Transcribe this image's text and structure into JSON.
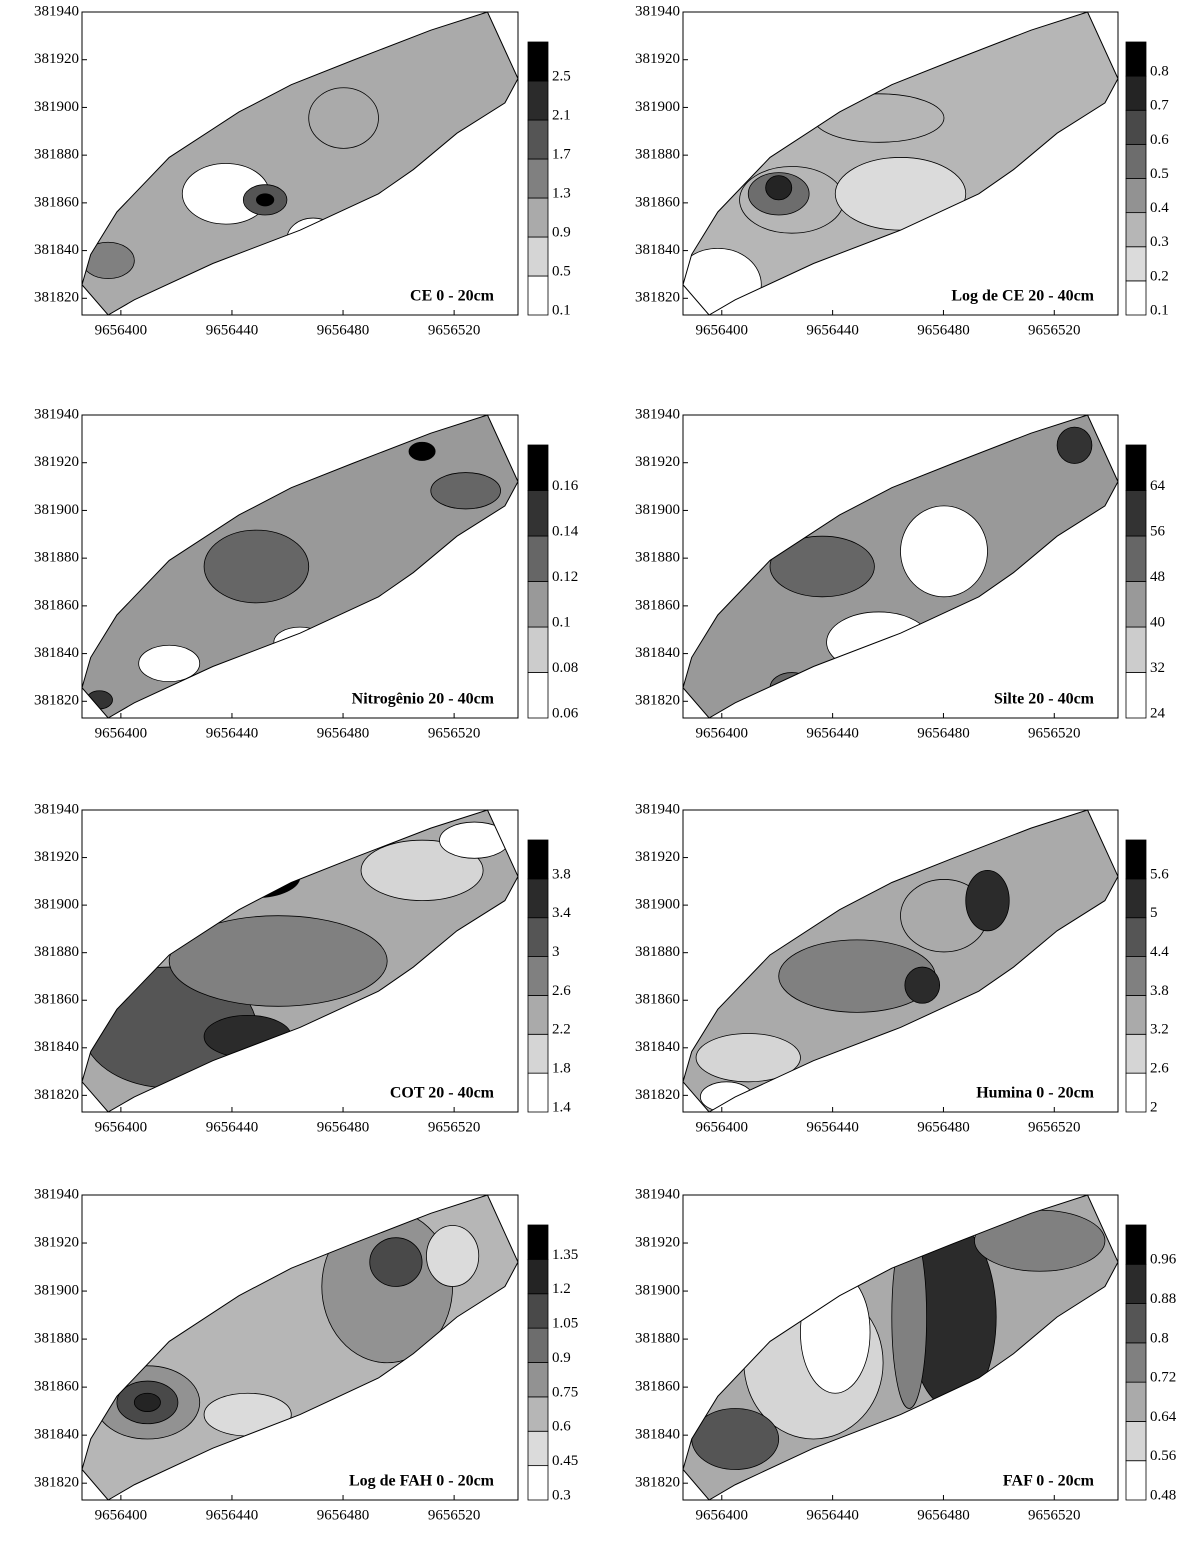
{
  "chart_data": [
    {
      "type": "contour",
      "title": "CE  0 - 20cm",
      "xlim": [
        9656386,
        9656543
      ],
      "ylim": [
        381813,
        381940
      ],
      "xticks": [
        9656400,
        9656440,
        9656480,
        9656520
      ],
      "yticks": [
        381820,
        381840,
        381860,
        381880,
        381900,
        381920,
        381940
      ],
      "levels": [
        0.1,
        0.5,
        0.9,
        1.3,
        1.7,
        2.1,
        2.5
      ]
    },
    {
      "type": "contour",
      "title": "Log de CE 20 - 40cm",
      "xlim": [
        9656386,
        9656543
      ],
      "ylim": [
        381813,
        381940
      ],
      "xticks": [
        9656400,
        9656440,
        9656480,
        9656520
      ],
      "yticks": [
        381820,
        381840,
        381860,
        381880,
        381900,
        381920,
        381940
      ],
      "levels": [
        0.1,
        0.2,
        0.3,
        0.4,
        0.5,
        0.6,
        0.7,
        0.8
      ]
    },
    {
      "type": "contour",
      "title": "Nitrogênio  20 - 40cm",
      "xlim": [
        9656386,
        9656543
      ],
      "ylim": [
        381813,
        381940
      ],
      "xticks": [
        9656400,
        9656440,
        9656480,
        9656520
      ],
      "yticks": [
        381820,
        381840,
        381860,
        381880,
        381900,
        381920,
        381940
      ],
      "levels": [
        0.06,
        0.08,
        0.1,
        0.12,
        0.14,
        0.16
      ]
    },
    {
      "type": "contour",
      "title": "Silte  20 - 40cm",
      "xlim": [
        9656386,
        9656543
      ],
      "ylim": [
        381813,
        381940
      ],
      "xticks": [
        9656400,
        9656440,
        9656480,
        9656520
      ],
      "yticks": [
        381820,
        381840,
        381860,
        381880,
        381900,
        381920,
        381940
      ],
      "levels": [
        24,
        32,
        40,
        48,
        56,
        64
      ]
    },
    {
      "type": "contour",
      "title": "COT  20 - 40cm",
      "xlim": [
        9656386,
        9656543
      ],
      "ylim": [
        381813,
        381940
      ],
      "xticks": [
        9656400,
        9656440,
        9656480,
        9656520
      ],
      "yticks": [
        381820,
        381840,
        381860,
        381880,
        381900,
        381920,
        381940
      ],
      "levels": [
        1.4,
        1.8,
        2.2,
        2.6,
        3,
        3.4,
        3.8
      ]
    },
    {
      "type": "contour",
      "title": "Humina 0 - 20cm",
      "xlim": [
        9656386,
        9656543
      ],
      "ylim": [
        381813,
        381940
      ],
      "xticks": [
        9656400,
        9656440,
        9656480,
        9656520
      ],
      "yticks": [
        381820,
        381840,
        381860,
        381880,
        381900,
        381920,
        381940
      ],
      "levels": [
        2,
        2.6,
        3.2,
        3.8,
        4.4,
        5,
        5.6
      ]
    },
    {
      "type": "contour",
      "title": "Log de FAH  0 - 20cm",
      "xlim": [
        9656386,
        9656543
      ],
      "ylim": [
        381813,
        381940
      ],
      "xticks": [
        9656400,
        9656440,
        9656480,
        9656520
      ],
      "yticks": [
        381820,
        381840,
        381860,
        381880,
        381900,
        381920,
        381940
      ],
      "levels": [
        0.3,
        0.45,
        0.6,
        0.75,
        0.9,
        1.05,
        1.2,
        1.35
      ]
    },
    {
      "type": "contour",
      "title": "FAF   0 - 20cm",
      "xlim": [
        9656386,
        9656543
      ],
      "ylim": [
        381813,
        381940
      ],
      "xticks": [
        9656400,
        9656440,
        9656480,
        9656520
      ],
      "yticks": [
        381820,
        381840,
        381860,
        381880,
        381900,
        381920,
        381940
      ],
      "levels": [
        0.48,
        0.56,
        0.64,
        0.72,
        0.8,
        0.88,
        0.96
      ]
    }
  ]
}
